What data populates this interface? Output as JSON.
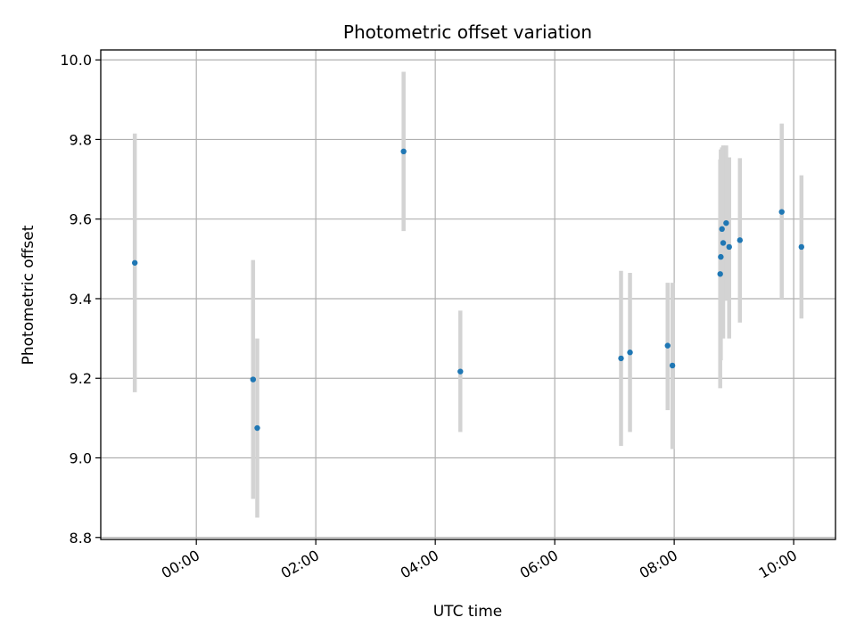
{
  "chart_data": {
    "type": "scatter",
    "title": "Photometric offset variation",
    "xlabel": "UTC time",
    "ylabel": "Photometric offset",
    "x_unit": "hours",
    "x_tick_values": [
      0,
      2,
      4,
      6,
      8,
      10
    ],
    "x_tick_labels": [
      "00:00",
      "02:00",
      "04:00",
      "06:00",
      "08:00",
      "10:00"
    ],
    "xlim": [
      -1.6,
      10.7
    ],
    "y_ticks": [
      8.8,
      9.0,
      9.2,
      9.4,
      9.6,
      9.8,
      10.0
    ],
    "y_tick_labels": [
      "8.8",
      "9.0",
      "9.2",
      "9.4",
      "9.6",
      "9.8",
      "10.0"
    ],
    "ylim": [
      8.795,
      10.025
    ],
    "grid": true,
    "colors": {
      "points": "#1f77b4",
      "error_bars": "#d3d3d3",
      "grid": "#b0b0b0"
    },
    "series": [
      {
        "points": [
          {
            "x": -1.03,
            "y": 9.49,
            "ylo": 9.165,
            "yhi": 9.815
          },
          {
            "x": 0.95,
            "y": 9.197,
            "ylo": 8.897,
            "yhi": 9.497
          },
          {
            "x": 1.02,
            "y": 9.075,
            "ylo": 8.85,
            "yhi": 9.3
          },
          {
            "x": 3.47,
            "y": 9.77,
            "ylo": 9.57,
            "yhi": 9.97
          },
          {
            "x": 4.42,
            "y": 9.217,
            "ylo": 9.065,
            "yhi": 9.37
          },
          {
            "x": 7.11,
            "y": 9.25,
            "ylo": 9.03,
            "yhi": 9.47
          },
          {
            "x": 7.26,
            "y": 9.265,
            "ylo": 9.065,
            "yhi": 9.465
          },
          {
            "x": 7.89,
            "y": 9.282,
            "ylo": 9.12,
            "yhi": 9.44
          },
          {
            "x": 7.97,
            "y": 9.232,
            "ylo": 9.022,
            "yhi": 9.44
          },
          {
            "x": 8.77,
            "y": 9.462,
            "ylo": 9.175,
            "yhi": 9.75
          },
          {
            "x": 8.78,
            "y": 9.505,
            "ylo": 9.245,
            "yhi": 9.775
          },
          {
            "x": 8.8,
            "y": 9.575,
            "ylo": 9.37,
            "yhi": 9.78
          },
          {
            "x": 8.82,
            "y": 9.54,
            "ylo": 9.3,
            "yhi": 9.785
          },
          {
            "x": 8.87,
            "y": 9.59,
            "ylo": 9.395,
            "yhi": 9.785
          },
          {
            "x": 8.92,
            "y": 9.53,
            "ylo": 9.3,
            "yhi": 9.755
          },
          {
            "x": 9.1,
            "y": 9.547,
            "ylo": 9.34,
            "yhi": 9.753
          },
          {
            "x": 9.8,
            "y": 9.618,
            "ylo": 9.4,
            "yhi": 9.84
          },
          {
            "x": 10.13,
            "y": 9.53,
            "ylo": 9.35,
            "yhi": 9.71
          }
        ]
      }
    ]
  }
}
